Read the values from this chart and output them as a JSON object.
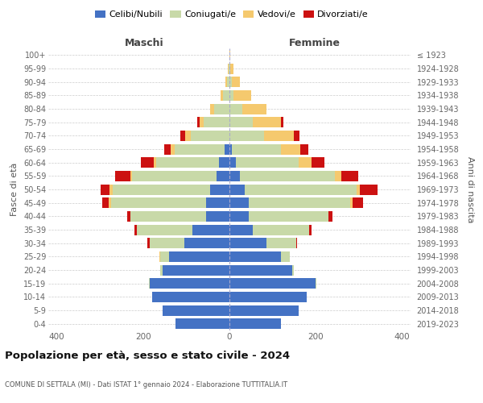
{
  "age_groups": [
    "0-4",
    "5-9",
    "10-14",
    "15-19",
    "20-24",
    "25-29",
    "30-34",
    "35-39",
    "40-44",
    "45-49",
    "50-54",
    "55-59",
    "60-64",
    "65-69",
    "70-74",
    "75-79",
    "80-84",
    "85-89",
    "90-94",
    "95-99",
    "100+"
  ],
  "birth_years": [
    "2019-2023",
    "2014-2018",
    "2009-2013",
    "2004-2008",
    "1999-2003",
    "1994-1998",
    "1989-1993",
    "1984-1988",
    "1979-1983",
    "1974-1978",
    "1969-1973",
    "1964-1968",
    "1959-1963",
    "1954-1958",
    "1949-1953",
    "1944-1948",
    "1939-1943",
    "1934-1938",
    "1929-1933",
    "1924-1928",
    "≤ 1923"
  ],
  "males_celibi": [
    125,
    155,
    180,
    185,
    155,
    140,
    105,
    85,
    55,
    55,
    45,
    30,
    25,
    12,
    0,
    0,
    0,
    0,
    0,
    0,
    0
  ],
  "males_coniugati": [
    0,
    0,
    0,
    2,
    5,
    20,
    80,
    130,
    175,
    220,
    225,
    195,
    145,
    115,
    90,
    60,
    35,
    15,
    5,
    2,
    0
  ],
  "males_vedovi": [
    0,
    0,
    0,
    0,
    0,
    2,
    0,
    0,
    0,
    5,
    8,
    5,
    5,
    10,
    12,
    10,
    10,
    5,
    5,
    2,
    0
  ],
  "males_divorziati": [
    0,
    0,
    0,
    0,
    0,
    0,
    5,
    5,
    8,
    15,
    20,
    35,
    30,
    15,
    12,
    5,
    0,
    0,
    0,
    0,
    0
  ],
  "females_nubili": [
    120,
    160,
    180,
    200,
    145,
    120,
    85,
    55,
    45,
    45,
    35,
    25,
    15,
    5,
    0,
    0,
    0,
    0,
    0,
    0,
    0
  ],
  "females_coniugate": [
    0,
    0,
    0,
    2,
    5,
    20,
    70,
    130,
    185,
    235,
    260,
    220,
    145,
    115,
    80,
    55,
    30,
    10,
    5,
    2,
    0
  ],
  "females_vedove": [
    0,
    0,
    0,
    0,
    0,
    0,
    0,
    0,
    0,
    5,
    8,
    15,
    30,
    45,
    70,
    65,
    55,
    40,
    20,
    8,
    2
  ],
  "females_divorziate": [
    0,
    0,
    0,
    0,
    0,
    0,
    2,
    5,
    8,
    25,
    40,
    38,
    30,
    18,
    12,
    5,
    0,
    0,
    0,
    0,
    0
  ],
  "color_celibi": "#4472C4",
  "color_coniugati": "#c8d9a8",
  "color_vedovi": "#F5C96E",
  "color_divorziati": "#CC1111",
  "xlim": 420,
  "title": "Popolazione per età, sesso e stato civile - 2024",
  "subtitle": "COMUNE DI SETTALA (MI) - Dati ISTAT 1° gennaio 2024 - Elaborazione TUTTITALIA.IT"
}
